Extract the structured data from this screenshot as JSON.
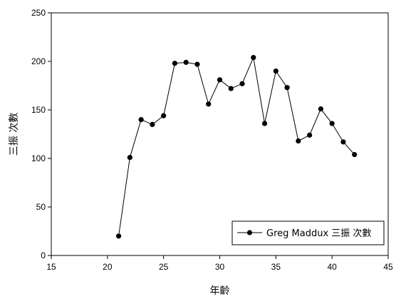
{
  "chart_data": {
    "type": "line",
    "title": "",
    "xlabel": "年齡",
    "ylabel": "三振 次數",
    "xlim": [
      15,
      45
    ],
    "ylim": [
      0,
      250
    ],
    "xticks": [
      15,
      20,
      25,
      30,
      35,
      40,
      45
    ],
    "yticks": [
      0,
      50,
      100,
      150,
      200,
      250
    ],
    "grid": false,
    "legend_position": "bottom-right",
    "series": [
      {
        "name": "Greg Maddux 三振 次數",
        "color": "#000000",
        "marker": "circle",
        "x": [
          21,
          22,
          23,
          24,
          25,
          26,
          27,
          28,
          29,
          30,
          31,
          32,
          33,
          34,
          35,
          36,
          37,
          38,
          39,
          40,
          41,
          42
        ],
        "y": [
          20,
          101,
          140,
          135,
          144,
          198,
          199,
          197,
          156,
          181,
          172,
          177,
          204,
          136,
          190,
          173,
          118,
          124,
          151,
          136,
          117,
          104
        ]
      }
    ]
  }
}
